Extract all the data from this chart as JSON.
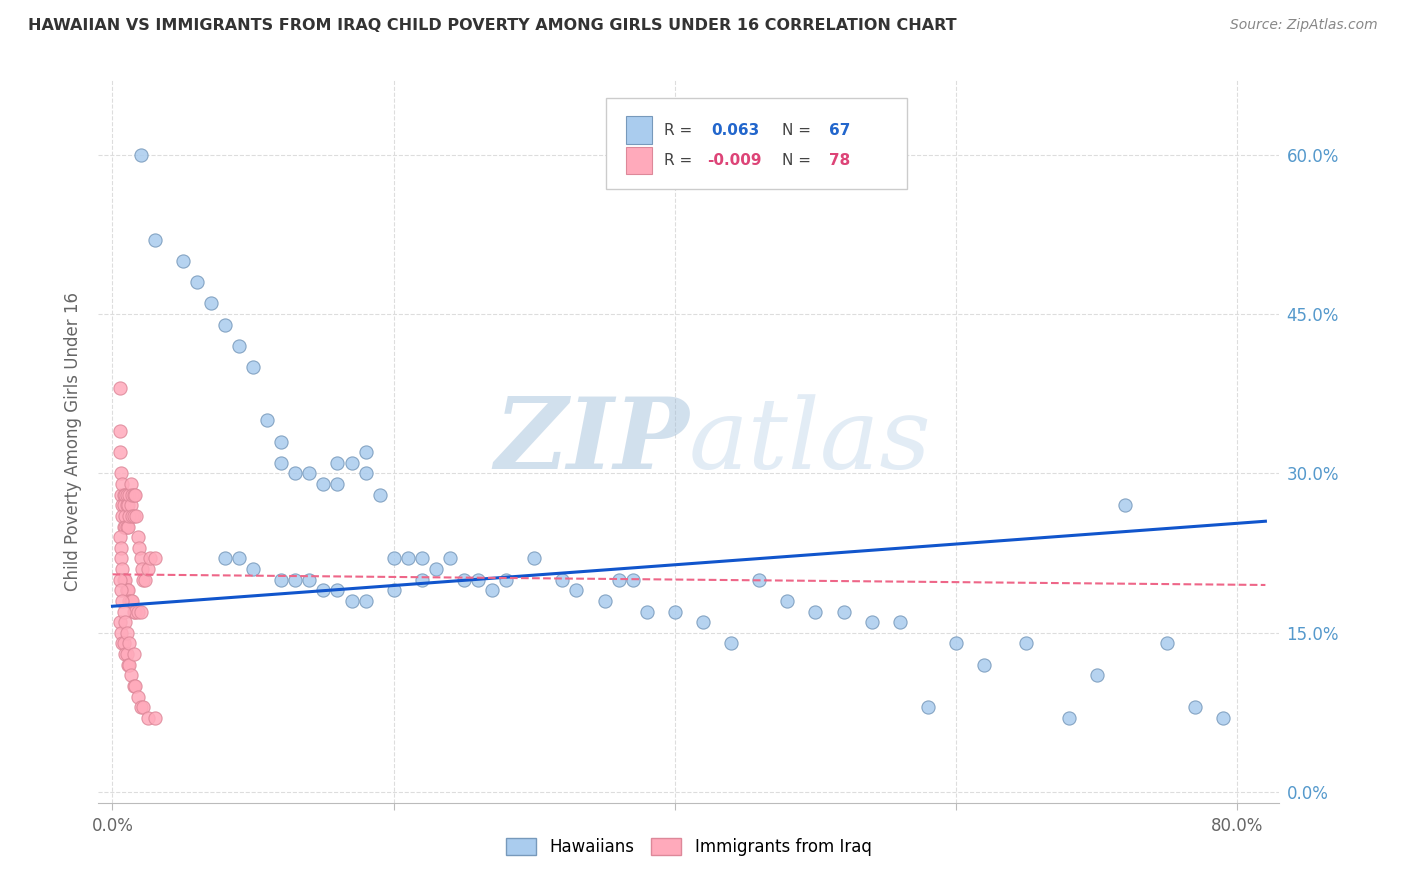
{
  "title": "HAWAIIAN VS IMMIGRANTS FROM IRAQ CHILD POVERTY AMONG GIRLS UNDER 16 CORRELATION CHART",
  "source": "Source: ZipAtlas.com",
  "ylabel_label": "Child Poverty Among Girls Under 16",
  "legend_r_hawaii": "R =",
  "legend_val_hawaii": "0.063",
  "legend_n_hawaii": "N =",
  "legend_nval_hawaii": "67",
  "legend_r_iraq": "R =",
  "legend_val_iraq": "-0.009",
  "legend_n_iraq": "N =",
  "legend_nval_iraq": "78",
  "hawaii_color": "#aaccee",
  "hawaii_edge_color": "#7799bb",
  "iraq_color": "#ffaabb",
  "iraq_edge_color": "#dd8899",
  "hawaii_line_color": "#1155cc",
  "iraq_line_color": "#ee6688",
  "watermark_color": "#ccddf5",
  "grid_color": "#dddddd",
  "background_color": "#ffffff",
  "title_color": "#333333",
  "source_color": "#888888",
  "ylabel_color": "#666666",
  "xtick_color": "#666666",
  "ytick_color": "#5599cc",
  "xlim": [
    0.0,
    0.82
  ],
  "ylim": [
    0.0,
    0.65
  ],
  "xtick_vals": [
    0.0,
    0.2,
    0.4,
    0.6,
    0.8
  ],
  "ytick_vals": [
    0.0,
    0.15,
    0.3,
    0.45,
    0.6
  ],
  "hawaii_x": [
    0.02,
    0.03,
    0.05,
    0.06,
    0.07,
    0.08,
    0.09,
    0.1,
    0.11,
    0.12,
    0.12,
    0.13,
    0.14,
    0.15,
    0.16,
    0.16,
    0.17,
    0.18,
    0.18,
    0.19,
    0.2,
    0.21,
    0.22,
    0.22,
    0.23,
    0.24,
    0.25,
    0.26,
    0.27,
    0.28,
    0.3,
    0.32,
    0.33,
    0.35,
    0.36,
    0.37,
    0.38,
    0.4,
    0.42,
    0.44,
    0.46,
    0.48,
    0.5,
    0.52,
    0.54,
    0.56,
    0.58,
    0.6,
    0.62,
    0.65,
    0.68,
    0.7,
    0.72,
    0.75,
    0.77,
    0.79,
    0.08,
    0.09,
    0.1,
    0.12,
    0.13,
    0.14,
    0.15,
    0.16,
    0.17,
    0.18,
    0.2
  ],
  "hawaii_y": [
    0.6,
    0.52,
    0.5,
    0.48,
    0.46,
    0.44,
    0.42,
    0.4,
    0.35,
    0.33,
    0.31,
    0.3,
    0.3,
    0.29,
    0.31,
    0.29,
    0.31,
    0.32,
    0.3,
    0.28,
    0.22,
    0.22,
    0.22,
    0.2,
    0.21,
    0.22,
    0.2,
    0.2,
    0.19,
    0.2,
    0.22,
    0.2,
    0.19,
    0.18,
    0.2,
    0.2,
    0.17,
    0.17,
    0.16,
    0.14,
    0.2,
    0.18,
    0.17,
    0.17,
    0.16,
    0.16,
    0.08,
    0.14,
    0.12,
    0.14,
    0.07,
    0.11,
    0.27,
    0.14,
    0.08,
    0.07,
    0.22,
    0.22,
    0.21,
    0.2,
    0.2,
    0.2,
    0.19,
    0.19,
    0.18,
    0.18,
    0.19
  ],
  "iraq_x": [
    0.005,
    0.005,
    0.005,
    0.006,
    0.006,
    0.007,
    0.007,
    0.007,
    0.008,
    0.008,
    0.008,
    0.009,
    0.009,
    0.009,
    0.01,
    0.01,
    0.01,
    0.011,
    0.011,
    0.012,
    0.012,
    0.013,
    0.013,
    0.014,
    0.014,
    0.015,
    0.015,
    0.016,
    0.017,
    0.018,
    0.019,
    0.02,
    0.021,
    0.022,
    0.023,
    0.025,
    0.027,
    0.03,
    0.005,
    0.006,
    0.006,
    0.007,
    0.008,
    0.009,
    0.01,
    0.01,
    0.011,
    0.012,
    0.013,
    0.014,
    0.015,
    0.016,
    0.018,
    0.02,
    0.005,
    0.006,
    0.007,
    0.008,
    0.009,
    0.01,
    0.011,
    0.012,
    0.013,
    0.015,
    0.016,
    0.018,
    0.02,
    0.022,
    0.025,
    0.03,
    0.005,
    0.006,
    0.007,
    0.008,
    0.009,
    0.01,
    0.012,
    0.015
  ],
  "iraq_y": [
    0.38,
    0.34,
    0.32,
    0.3,
    0.28,
    0.29,
    0.27,
    0.26,
    0.28,
    0.27,
    0.25,
    0.28,
    0.26,
    0.25,
    0.28,
    0.27,
    0.25,
    0.27,
    0.25,
    0.28,
    0.26,
    0.29,
    0.27,
    0.28,
    0.26,
    0.28,
    0.26,
    0.28,
    0.26,
    0.24,
    0.23,
    0.22,
    0.21,
    0.2,
    0.2,
    0.21,
    0.22,
    0.22,
    0.24,
    0.23,
    0.22,
    0.21,
    0.2,
    0.2,
    0.19,
    0.19,
    0.19,
    0.18,
    0.18,
    0.18,
    0.17,
    0.17,
    0.17,
    0.17,
    0.16,
    0.15,
    0.14,
    0.14,
    0.13,
    0.13,
    0.12,
    0.12,
    0.11,
    0.1,
    0.1,
    0.09,
    0.08,
    0.08,
    0.07,
    0.07,
    0.2,
    0.19,
    0.18,
    0.17,
    0.16,
    0.15,
    0.14,
    0.13
  ],
  "hawaii_line_x": [
    0.0,
    0.82
  ],
  "hawaii_line_y": [
    0.175,
    0.255
  ],
  "iraq_line_x": [
    0.0,
    0.82
  ],
  "iraq_line_y": [
    0.205,
    0.195
  ]
}
